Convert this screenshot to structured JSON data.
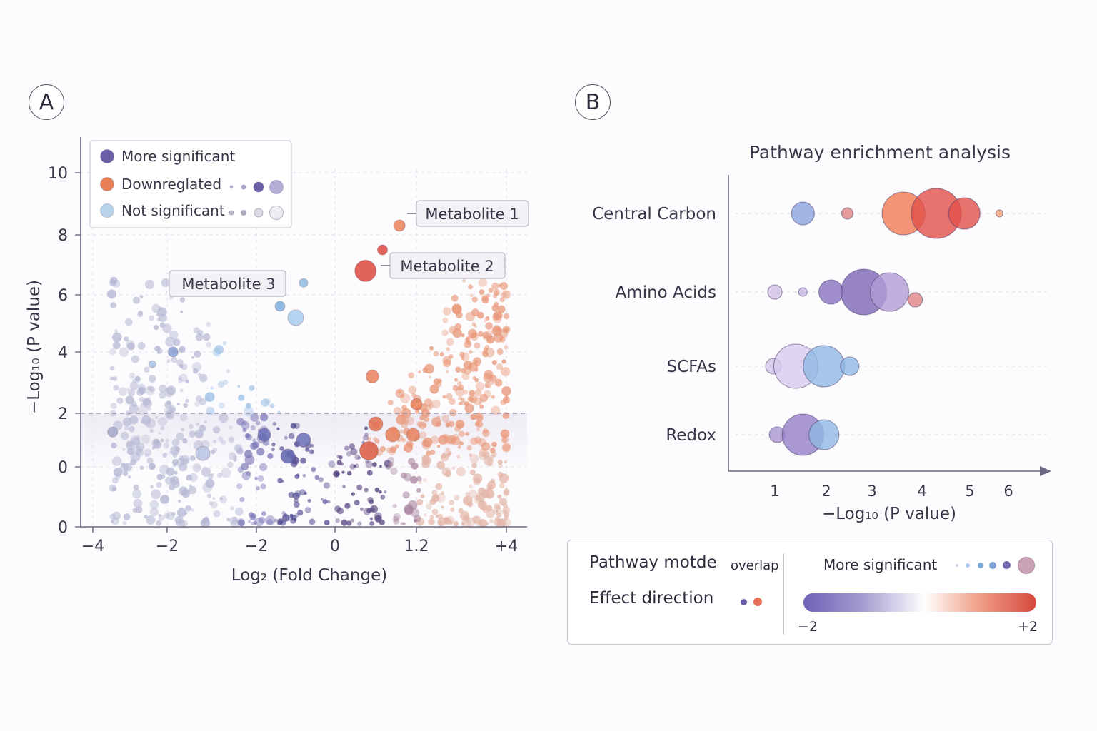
{
  "panels": {
    "a_label": "A",
    "b_label": "B"
  },
  "colors": {
    "more_significant": "#6a5fa6",
    "downregulated": "#e8805a",
    "not_significant": "#b8d3ea",
    "up_strong": "#d9483d",
    "blue_bubble": "#7fb0de",
    "purple_bubble": "#8a7cc0",
    "lavender_bubble": "#c7b9e0"
  },
  "chart_data": [
    {
      "type": "scatter",
      "panel": "A",
      "xlabel": "Log₂ (Fold Change)",
      "ylabel": "−Log₁₀ (P value)",
      "xticks": [
        "−4",
        "−2",
        "−2",
        "0",
        "1.2",
        "+4"
      ],
      "yticks": [
        "0",
        "0",
        "2",
        "4",
        "6",
        "8",
        "10"
      ],
      "threshold_line": 2,
      "grid": true,
      "legend_position": "top-left",
      "legend": [
        {
          "label": "More significant",
          "color": "#6a5fa6"
        },
        {
          "label": "Downreglated",
          "color": "#e8805a"
        },
        {
          "label": "Not significant",
          "color": "#b8d3ea"
        }
      ],
      "annotations": [
        {
          "label": "Metabolite 1",
          "x": 0.95,
          "y": 8.3
        },
        {
          "label": "Metabolite 2",
          "x": 0.45,
          "y": 6.8
        },
        {
          "label": "Metabolite 3",
          "x": -0.4,
          "y": 6.4
        }
      ],
      "highlight_points": [
        {
          "x": 0.95,
          "y": 8.3,
          "color": "#e8805a",
          "size": 8
        },
        {
          "x": 0.7,
          "y": 7.5,
          "color": "#d9483d",
          "size": 7
        },
        {
          "x": 0.45,
          "y": 6.8,
          "color": "#d9483d",
          "size": 15
        },
        {
          "x": -0.4,
          "y": 6.4,
          "color": "#8fbde3",
          "size": 6
        },
        {
          "x": -0.7,
          "y": 5.6,
          "color": "#7fb0de",
          "size": 7
        },
        {
          "x": -0.5,
          "y": 5.2,
          "color": "#a8cdef",
          "size": 11
        },
        {
          "x": -2.4,
          "y": 4.0,
          "color": "#8a9fd6",
          "size": 7
        },
        {
          "x": -2.8,
          "y": 3.6,
          "color": "#a8c3e6",
          "size": 5
        },
        {
          "x": 0.55,
          "y": 3.2,
          "color": "#e8805a",
          "size": 9
        },
        {
          "x": 1.2,
          "y": 2.3,
          "color": "#e8805a",
          "size": 8
        },
        {
          "x": 0.6,
          "y": 1.6,
          "color": "#e07050",
          "size": 10
        },
        {
          "x": 0.85,
          "y": 1.2,
          "color": "#e8805a",
          "size": 10
        },
        {
          "x": 1.15,
          "y": 1.2,
          "color": "#e8805a",
          "size": 9
        },
        {
          "x": 0.5,
          "y": 0.6,
          "color": "#d9583f",
          "size": 13
        },
        {
          "x": -0.9,
          "y": 1.2,
          "color": "#6a6fb6",
          "size": 9
        },
        {
          "x": -0.4,
          "y": 1.0,
          "color": "#6a6fb6",
          "size": 10
        },
        {
          "x": -0.6,
          "y": 0.4,
          "color": "#5f63ad",
          "size": 10
        },
        {
          "x": -1.9,
          "y": 0.5,
          "color": "#b8c4e3",
          "size": 10
        },
        {
          "x": -3.6,
          "y": 1.3,
          "color": "#a3a8c9",
          "size": 7
        }
      ]
    },
    {
      "type": "scatter",
      "panel": "B",
      "title": "Pathway enrichment analysis",
      "xlabel": "−Log₁₀ (P value)",
      "xticks": [
        1,
        2,
        3,
        4,
        5,
        6
      ],
      "categories": [
        "Central Carbon",
        "Amino Acids",
        "SCFAs",
        "Redox"
      ],
      "bubbles": [
        {
          "pathway": "Central Carbon",
          "x": 1.6,
          "size": 16,
          "color": "#8ba5e0"
        },
        {
          "pathway": "Central Carbon",
          "x": 2.55,
          "size": 8,
          "color": "#e08585"
        },
        {
          "pathway": "Central Carbon",
          "x": 3.75,
          "size": 30,
          "color": "#f07a52"
        },
        {
          "pathway": "Central Carbon",
          "x": 4.45,
          "size": 35,
          "color": "#e25048"
        },
        {
          "pathway": "Central Carbon",
          "x": 5.05,
          "size": 22,
          "color": "#e25048"
        },
        {
          "pathway": "Central Carbon",
          "x": 5.8,
          "size": 5,
          "color": "#f0a070"
        },
        {
          "pathway": "Amino Acids",
          "x": 1.0,
          "size": 10,
          "color": "#cfc2e4"
        },
        {
          "pathway": "Amino Acids",
          "x": 1.6,
          "size": 6,
          "color": "#c8b8e2"
        },
        {
          "pathway": "Amino Acids",
          "x": 2.2,
          "size": 17,
          "color": "#8a74c0"
        },
        {
          "pathway": "Amino Acids",
          "x": 2.9,
          "size": 32,
          "color": "#7d66b6"
        },
        {
          "pathway": "Amino Acids",
          "x": 3.45,
          "size": 27,
          "color": "#b39cd6"
        },
        {
          "pathway": "Amino Acids",
          "x": 4.0,
          "size": 10,
          "color": "#e08585"
        },
        {
          "pathway": "SCFAs",
          "x": 0.97,
          "size": 11,
          "color": "#d4c6ea"
        },
        {
          "pathway": "SCFAs",
          "x": 1.45,
          "size": 31,
          "color": "#d7caee"
        },
        {
          "pathway": "SCFAs",
          "x": 2.05,
          "size": 29,
          "color": "#8eb8e4"
        },
        {
          "pathway": "SCFAs",
          "x": 2.6,
          "size": 13,
          "color": "#8eb8e4"
        },
        {
          "pathway": "Redox",
          "x": 1.05,
          "size": 11,
          "color": "#a996d2"
        },
        {
          "pathway": "Redox",
          "x": 1.6,
          "size": 29,
          "color": "#9580c8"
        },
        {
          "pathway": "Redox",
          "x": 2.05,
          "size": 21,
          "color": "#8eb8e4"
        }
      ]
    }
  ],
  "legend_b": {
    "pathway_mode": "Pathway motde",
    "overlap": "overlap",
    "effect_direction": "Effect direction",
    "more_significant": "More significant",
    "scale_min": "−2",
    "scale_max": "+2"
  }
}
